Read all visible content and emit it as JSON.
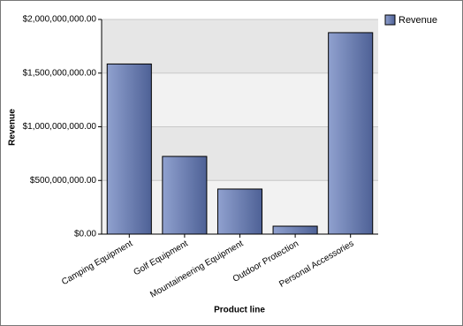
{
  "chart_data": {
    "type": "bar",
    "x_label": "Product line",
    "y_label": "Revenue",
    "categories": [
      "Camping Equipment",
      "Golf Equipment",
      "Mountaineering Equipment",
      "Outdoor Protection",
      "Personal Accessories"
    ],
    "series": [
      {
        "name": "Revenue",
        "color": "#6179bb",
        "values": [
          1585000000,
          724000000,
          420000000,
          74000000,
          1877000000
        ]
      }
    ],
    "ylim": [
      0,
      2000000000
    ],
    "yticks": [
      {
        "value": 0,
        "label": "$0.00"
      },
      {
        "value": 500000000,
        "label": "$500,000,000.00"
      },
      {
        "value": 1000000000,
        "label": "$1,000,000,000.00"
      },
      {
        "value": 1500000000,
        "label": "$1,500,000,000.00"
      },
      {
        "value": 2000000000,
        "label": "$2,000,000,000.00"
      }
    ],
    "grid": true,
    "legend": "top-right"
  }
}
